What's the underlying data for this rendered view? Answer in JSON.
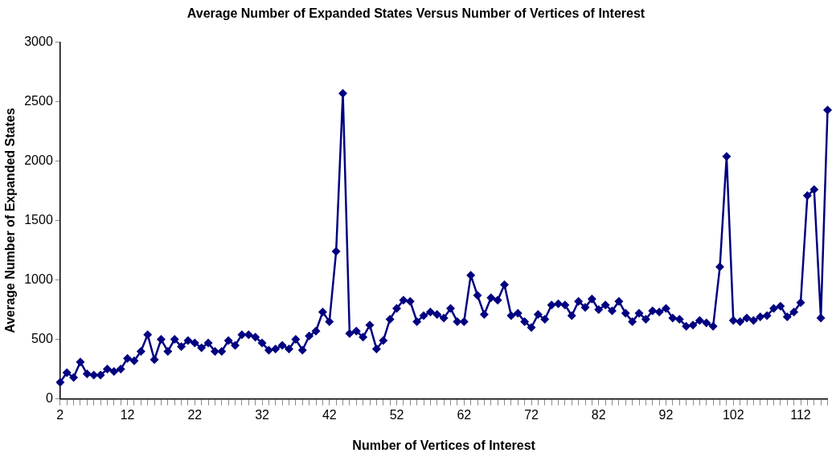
{
  "chart_data": {
    "type": "line",
    "title": "Average Number of Expanded States Versus Number of Vertices of Interest",
    "xlabel": "Number of Vertices of Interest",
    "ylabel": "Average Number of Expanded States",
    "categories": [
      "2",
      null,
      null,
      null,
      null,
      null,
      null,
      null,
      null,
      null,
      "12",
      null,
      null,
      null,
      null,
      null,
      null,
      null,
      null,
      null,
      "22",
      null,
      null,
      null,
      null,
      null,
      null,
      null,
      null,
      null,
      "32",
      null,
      null,
      null,
      null,
      null,
      null,
      null,
      null,
      null,
      "42",
      null,
      null,
      null,
      null,
      null,
      null,
      null,
      null,
      null,
      "52",
      null,
      null,
      null,
      null,
      null,
      null,
      null,
      null,
      null,
      "62",
      null,
      null,
      null,
      null,
      null,
      null,
      null,
      null,
      null,
      "72",
      null,
      null,
      null,
      null,
      null,
      null,
      null,
      null,
      null,
      "82",
      null,
      null,
      null,
      null,
      null,
      null,
      null,
      null,
      null,
      "92",
      null,
      null,
      null,
      null,
      null,
      null,
      null,
      null,
      null,
      "102",
      null,
      null,
      null,
      null,
      null,
      null,
      null,
      null,
      null,
      "112",
      null,
      null,
      null,
      null
    ],
    "series": [
      {
        "color": "#000080",
        "values": [
          140,
          220,
          180,
          310,
          210,
          200,
          200,
          250,
          230,
          250,
          340,
          320,
          400,
          540,
          330,
          500,
          400,
          500,
          440,
          490,
          470,
          430,
          470,
          400,
          400,
          490,
          450,
          540,
          540,
          520,
          470,
          410,
          420,
          450,
          420,
          500,
          410,
          530,
          570,
          730,
          650,
          1240,
          2570,
          550,
          570,
          520,
          620,
          420,
          490,
          670,
          760,
          830,
          820,
          650,
          700,
          730,
          710,
          680,
          760,
          650,
          650,
          1040,
          870,
          710,
          850,
          830,
          960,
          700,
          720,
          650,
          600,
          710,
          670,
          790,
          800,
          790,
          700,
          820,
          770,
          840,
          750,
          790,
          740,
          820,
          720,
          650,
          720,
          670,
          740,
          730,
          760,
          680,
          670,
          610,
          620,
          660,
          640,
          610,
          1110,
          2040,
          660,
          650,
          680,
          660,
          690,
          700,
          760,
          780,
          690,
          730,
          810,
          1710,
          1760,
          680,
          2430
        ]
      }
    ],
    "ylim": [
      0,
      3000
    ],
    "yticks": [
      0,
      500,
      1000,
      1500,
      2000,
      2500,
      3000
    ],
    "grid": false,
    "legend": false,
    "marker": "diamond",
    "line_style": "solid"
  }
}
